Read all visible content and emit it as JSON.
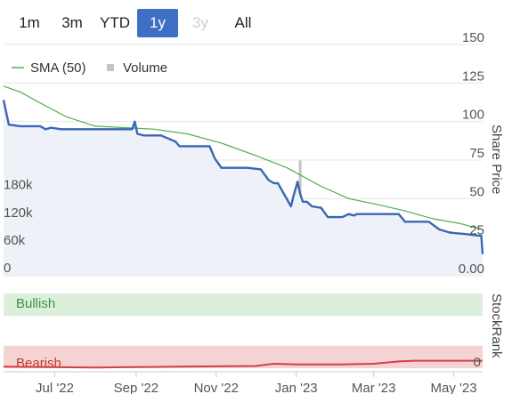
{
  "range_selector": {
    "buttons": [
      {
        "label": "1m",
        "state": "normal"
      },
      {
        "label": "3m",
        "state": "normal"
      },
      {
        "label": "YTD",
        "state": "normal"
      },
      {
        "label": "1y",
        "state": "active"
      },
      {
        "label": "3y",
        "state": "disabled"
      },
      {
        "label": "All",
        "state": "normal"
      }
    ]
  },
  "colors": {
    "price_line": "#3a66b5",
    "price_fill": "#eef1f8",
    "sma_line": "#4caf50",
    "volume_bar": "#c3c3c8",
    "bullish_band": "#dcefdb",
    "bullish_text": "#3f8f45",
    "bearish_band": "#f6d3d3",
    "bearish_text": "#c0392b",
    "stockrank_line": "#d33f49",
    "grid": "#e6e6e6",
    "active_button": "#3f6fc4"
  },
  "chart_data": [
    {
      "type": "line",
      "legend": {
        "placement": "top-left",
        "items": [
          {
            "label": "SMA (50)",
            "symbol": "line"
          },
          {
            "label": "Volume",
            "symbol": "square"
          }
        ]
      },
      "y_axis": {
        "title": "Share Price",
        "side": "right",
        "ylim": [
          0,
          150
        ],
        "ticks": [
          {
            "value": 0,
            "label": "0.00"
          },
          {
            "value": 25,
            "label": "25"
          },
          {
            "value": 50,
            "label": "50"
          },
          {
            "value": 75,
            "label": "75"
          },
          {
            "value": 100,
            "label": "100"
          },
          {
            "value": 125,
            "label": "125"
          },
          {
            "value": 150,
            "label": "150"
          }
        ]
      },
      "volume_axis": {
        "side": "left",
        "ylim": [
          0,
          270000
        ],
        "ticks": [
          {
            "value": 0,
            "label": "0"
          },
          {
            "value": 60000,
            "label": "60k"
          },
          {
            "value": 120000,
            "label": "120k"
          },
          {
            "value": 180000,
            "label": "180k"
          }
        ]
      },
      "x_axis": {
        "range": [
          "2022-05-23",
          "2023-05-23"
        ],
        "ticks": [
          {
            "date": "2022-07-01",
            "label": "Jul '22"
          },
          {
            "date": "2022-09-01",
            "label": "Sep '22"
          },
          {
            "date": "2022-11-01",
            "label": "Nov '22"
          },
          {
            "date": "2023-01-01",
            "label": "Jan '23"
          },
          {
            "date": "2023-03-01",
            "label": "Mar '23"
          },
          {
            "date": "2023-05-01",
            "label": "May '23"
          }
        ]
      },
      "grid": true,
      "series": [
        {
          "name": "Share price",
          "x": [
            "2022-05-23",
            "2022-05-27",
            "2022-06-05",
            "2022-06-20",
            "2022-06-24",
            "2022-06-28",
            "2022-07-06",
            "2022-07-20",
            "2022-08-10",
            "2022-08-29",
            "2022-08-31",
            "2022-09-02",
            "2022-09-07",
            "2022-09-20",
            "2022-10-01",
            "2022-10-04",
            "2022-10-20",
            "2022-10-27",
            "2022-10-31",
            "2022-11-05",
            "2022-11-25",
            "2022-12-05",
            "2022-12-11",
            "2022-12-15",
            "2022-12-18",
            "2022-12-28",
            "2022-12-30",
            "2023-01-02",
            "2023-01-04",
            "2023-01-06",
            "2023-01-09",
            "2023-01-13",
            "2023-01-20",
            "2023-01-25",
            "2023-02-05",
            "2023-02-10",
            "2023-02-14",
            "2023-02-16",
            "2023-02-25",
            "2023-03-05",
            "2023-03-20",
            "2023-03-25",
            "2023-04-05",
            "2023-04-12",
            "2023-04-20",
            "2023-04-28",
            "2023-05-10",
            "2023-05-20",
            "2023-05-22",
            "2023-05-23"
          ],
          "y": [
            114,
            98,
            97,
            97,
            95,
            96,
            95,
            95,
            95,
            95,
            100,
            92,
            91,
            91,
            87,
            84,
            84,
            84,
            76,
            70,
            70,
            69,
            62,
            60,
            60,
            45,
            52,
            61,
            53,
            48,
            48,
            45,
            44,
            38,
            38,
            40,
            39,
            40,
            40,
            40,
            40,
            35,
            35,
            35,
            30,
            28,
            27,
            26,
            26,
            14
          ]
        },
        {
          "name": "SMA (50)",
          "x": [
            "2022-05-23",
            "2022-06-05",
            "2022-06-20",
            "2022-07-10",
            "2022-08-01",
            "2022-08-25",
            "2022-09-15",
            "2022-10-10",
            "2022-11-05",
            "2022-12-01",
            "2022-12-25",
            "2023-01-20",
            "2023-02-10",
            "2023-03-05",
            "2023-03-25",
            "2023-04-15",
            "2023-05-05",
            "2023-05-23"
          ],
          "y": [
            123,
            119,
            112,
            103,
            97,
            96,
            95,
            92,
            86,
            78,
            70,
            58,
            50,
            46,
            42,
            37,
            34,
            30
          ]
        },
        {
          "name": "Volume",
          "type": "bar",
          "x": [
            "2022-06-04",
            "2022-06-15",
            "2022-07-08",
            "2022-07-30",
            "2022-08-20",
            "2022-09-10",
            "2022-10-05",
            "2022-10-25",
            "2022-11-20",
            "2022-11-23",
            "2022-12-01",
            "2022-12-10",
            "2022-12-15",
            "2022-12-20",
            "2022-12-23",
            "2022-12-26",
            "2022-12-29",
            "2023-01-02",
            "2023-01-04",
            "2023-01-06",
            "2023-01-10",
            "2023-01-13",
            "2023-01-18",
            "2023-01-25",
            "2023-02-01",
            "2023-02-08",
            "2023-02-15",
            "2023-02-25",
            "2023-03-10",
            "2023-03-15",
            "2023-03-26",
            "2023-04-05",
            "2023-04-12",
            "2023-04-28"
          ],
          "y": [
            14000,
            1500,
            2000,
            3000,
            3000,
            2000,
            3500,
            2000,
            8000,
            11000,
            5000,
            6000,
            4000,
            15000,
            8000,
            10000,
            7000,
            24000,
            250000,
            45000,
            9000,
            7000,
            40000,
            9000,
            35000,
            16000,
            8000,
            12000,
            4000,
            6000,
            7000,
            12000,
            9000,
            5000
          ]
        }
      ]
    },
    {
      "type": "line",
      "y_axis": {
        "title": "StockRank",
        "side": "right",
        "ylim": [
          0,
          100
        ],
        "ticks": [
          {
            "value": 0,
            "label": "0"
          }
        ]
      },
      "bands": [
        {
          "label": "Bullish",
          "from": 70,
          "to": 100
        },
        {
          "label": "Bearish",
          "from": 0,
          "to": 30
        }
      ],
      "series": [
        {
          "name": "StockRank",
          "x": [
            "2022-05-23",
            "2022-08-01",
            "2022-10-01",
            "2022-12-01",
            "2022-12-15",
            "2023-01-01",
            "2023-02-01",
            "2023-03-01",
            "2023-03-20",
            "2023-04-01",
            "2023-05-23"
          ],
          "y": [
            2,
            1,
            2,
            3,
            6,
            5,
            5,
            6,
            9,
            10,
            10
          ]
        }
      ]
    }
  ]
}
